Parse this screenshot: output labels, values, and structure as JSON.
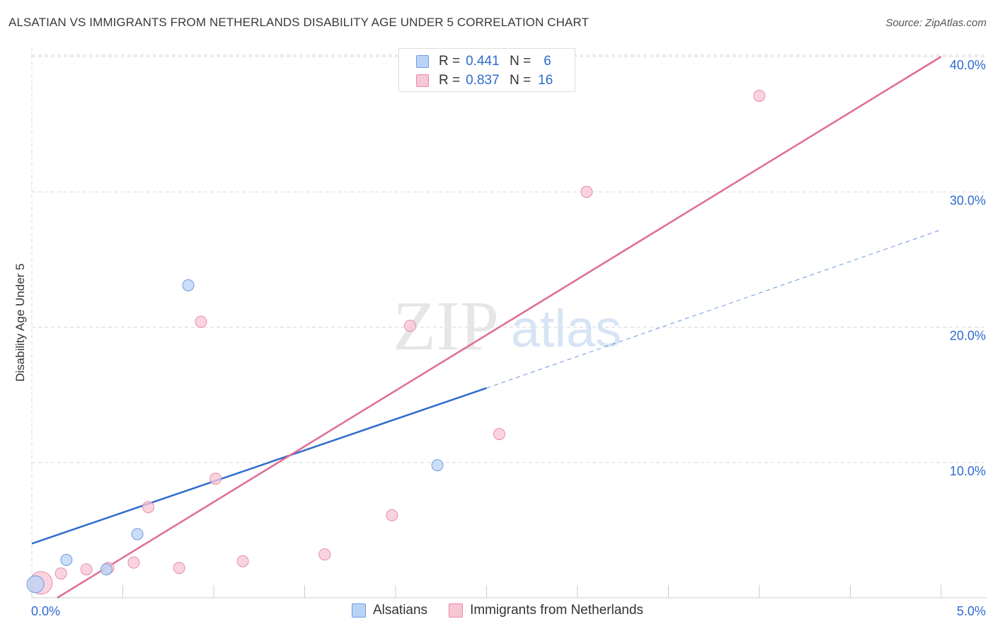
{
  "header": {
    "title": "ALSATIAN VS IMMIGRANTS FROM NETHERLANDS DISABILITY AGE UNDER 5 CORRELATION CHART",
    "source": "Source: ZipAtlas.com"
  },
  "watermark": {
    "zip": "ZIP",
    "atlas": "atlas"
  },
  "colors": {
    "blue_fill": "#b9d3f5",
    "blue_stroke": "#6e9be0",
    "blue_line": "#2f6bcd",
    "pink_fill": "#f7c6d4",
    "pink_stroke": "#e88aa8",
    "pink_line": "#e06b94",
    "axis_label": "#2f6bcd",
    "grid": "#d9d9d9"
  },
  "legend": {
    "rows": [
      {
        "r_label": "R =",
        "r_value": "0.441",
        "n_label": "N =",
        "n_value": "6"
      },
      {
        "r_label": "R =",
        "r_value": "0.837",
        "n_label": "N =",
        "n_value": "16"
      }
    ]
  },
  "chart_data": {
    "type": "scatter",
    "xlabel": "",
    "ylabel": "Disability Age Under 5",
    "xlim": [
      0,
      5
    ],
    "ylim": [
      0,
      40
    ],
    "x_tick_labels": [
      "0.0%",
      "5.0%"
    ],
    "y_ticks": [
      10,
      20,
      30,
      40
    ],
    "y_tick_labels": [
      "10.0%",
      "20.0%",
      "30.0%",
      "40.0%"
    ],
    "grid": true,
    "series": [
      {
        "name": "Alsatians",
        "color": "#6e9be0",
        "points": [
          {
            "x": 0.02,
            "y": 1.0,
            "size": 12
          },
          {
            "x": 0.19,
            "y": 2.8,
            "size": 8
          },
          {
            "x": 0.41,
            "y": 2.1,
            "size": 8
          },
          {
            "x": 0.58,
            "y": 4.7,
            "size": 8
          },
          {
            "x": 0.86,
            "y": 23.1,
            "size": 8
          },
          {
            "x": 2.23,
            "y": 9.8,
            "size": 8
          }
        ],
        "trend": {
          "x0": 0.0,
          "y0": 4.0,
          "x_solid_end": 2.5,
          "y_solid_end": 15.5,
          "x1": 5.0,
          "y1": 27.2
        }
      },
      {
        "name": "Immigrants from Netherlands",
        "color": "#e88aa8",
        "points": [
          {
            "x": 0.05,
            "y": 1.1,
            "size": 16
          },
          {
            "x": 0.16,
            "y": 1.8,
            "size": 8
          },
          {
            "x": 0.3,
            "y": 2.1,
            "size": 8
          },
          {
            "x": 0.42,
            "y": 2.2,
            "size": 8
          },
          {
            "x": 0.56,
            "y": 2.6,
            "size": 8
          },
          {
            "x": 0.64,
            "y": 6.7,
            "size": 8
          },
          {
            "x": 0.81,
            "y": 2.2,
            "size": 8
          },
          {
            "x": 0.93,
            "y": 20.4,
            "size": 8
          },
          {
            "x": 1.01,
            "y": 8.8,
            "size": 8
          },
          {
            "x": 1.16,
            "y": 2.7,
            "size": 8
          },
          {
            "x": 1.61,
            "y": 3.2,
            "size": 8
          },
          {
            "x": 1.98,
            "y": 6.1,
            "size": 8
          },
          {
            "x": 2.08,
            "y": 20.1,
            "size": 8
          },
          {
            "x": 2.57,
            "y": 12.1,
            "size": 8
          },
          {
            "x": 3.05,
            "y": 30.0,
            "size": 8
          },
          {
            "x": 4.0,
            "y": 37.1,
            "size": 8
          }
        ],
        "trend": {
          "x0": 0.14,
          "y0": 0.0,
          "x1": 5.0,
          "y1": 40.0
        }
      }
    ]
  },
  "bottom_legend": {
    "items": [
      {
        "label": "Alsatians"
      },
      {
        "label": "Immigrants from Netherlands"
      }
    ]
  }
}
